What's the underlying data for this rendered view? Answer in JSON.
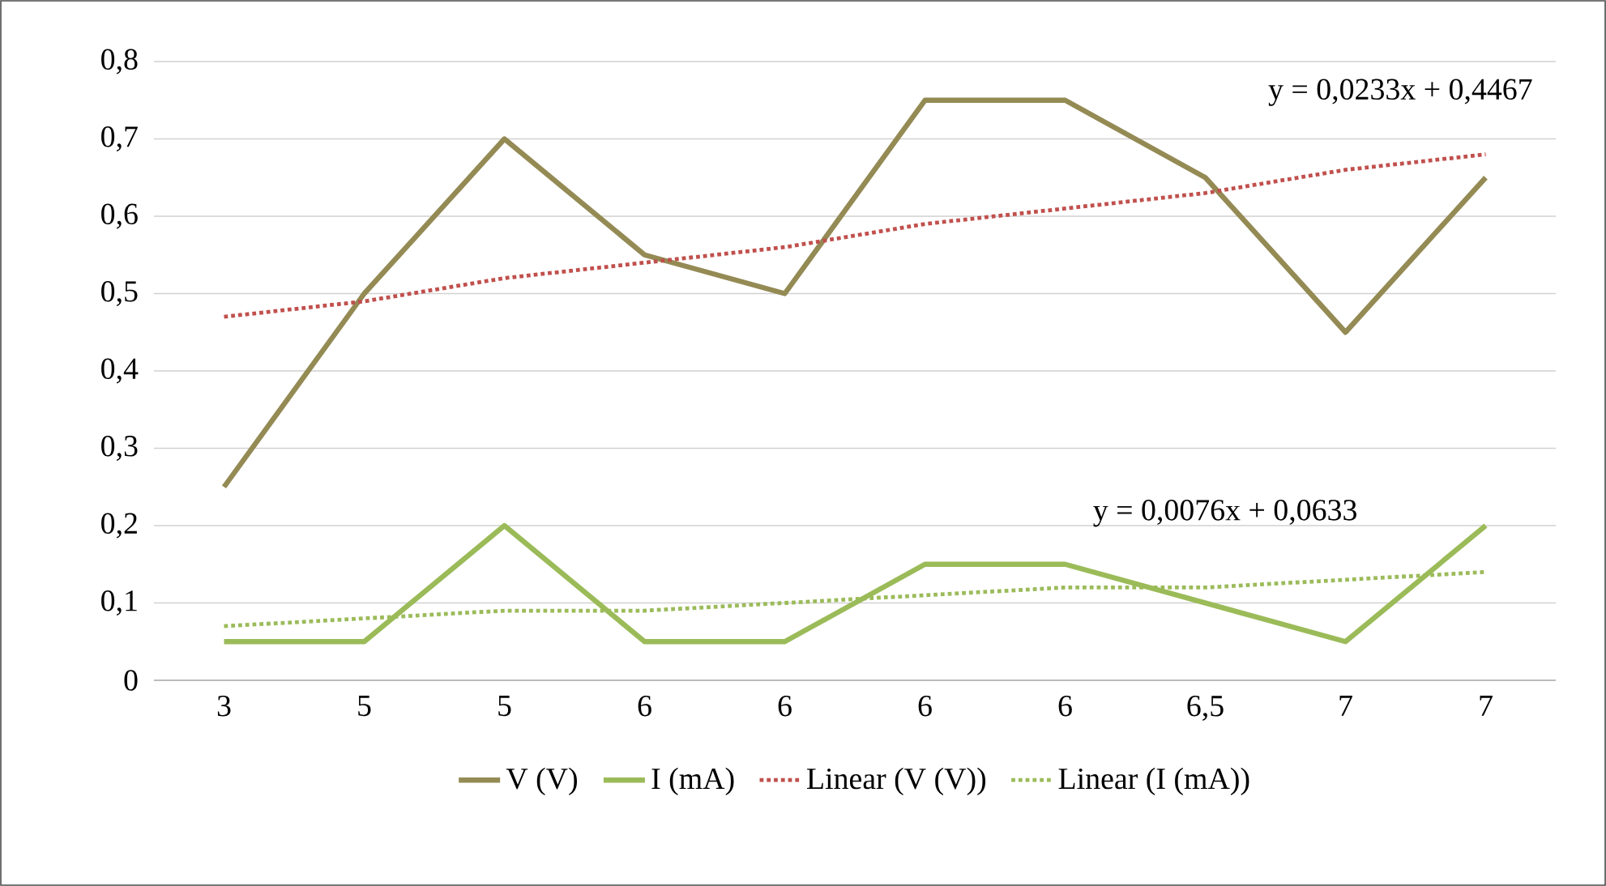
{
  "chart_data": {
    "type": "line",
    "categories": [
      "3",
      "5",
      "5",
      "6",
      "6",
      "6",
      "6",
      "6,5",
      "7",
      "7"
    ],
    "series": [
      {
        "name": "V (V)",
        "color": "#948a54",
        "line_style": "solid",
        "values": [
          0.25,
          0.5,
          0.7,
          0.55,
          0.5,
          0.75,
          0.75,
          0.65,
          0.45,
          0.65
        ]
      },
      {
        "name": "I (mA)",
        "color": "#9bbb59",
        "line_style": "solid",
        "values": [
          0.05,
          0.05,
          0.2,
          0.05,
          0.05,
          0.15,
          0.15,
          0.1,
          0.05,
          0.2
        ]
      },
      {
        "name": "Linear (V (V))",
        "color": "#c0504d",
        "line_style": "dotted",
        "values": [
          0.47,
          0.49,
          0.52,
          0.54,
          0.56,
          0.59,
          0.61,
          0.63,
          0.66,
          0.68
        ]
      },
      {
        "name": "Linear (I (mA))",
        "color": "#9bbb59",
        "line_style": "dotted",
        "values": [
          0.07,
          0.08,
          0.09,
          0.09,
          0.1,
          0.11,
          0.12,
          0.12,
          0.13,
          0.14
        ]
      }
    ],
    "ylim": [
      0,
      0.8
    ],
    "yticks": [
      0,
      {
        "value": 0.1,
        "label": "0,1"
      },
      {
        "value": 0.2,
        "label": "0,2"
      },
      {
        "value": 0.3,
        "label": "0,3"
      },
      {
        "value": 0.4,
        "label": "0,4"
      },
      {
        "value": 0.5,
        "label": "0,5"
      },
      {
        "value": 0.6,
        "label": "0,6"
      },
      {
        "value": 0.7,
        "label": "0,7"
      },
      {
        "value": 0.8,
        "label": "0,8"
      }
    ],
    "annotations": [
      "y = 0,0233x + 0,4467",
      "y = 0,0076x + 0,0633"
    ],
    "grid": "y",
    "legend": "bottom",
    "marker": "none"
  }
}
